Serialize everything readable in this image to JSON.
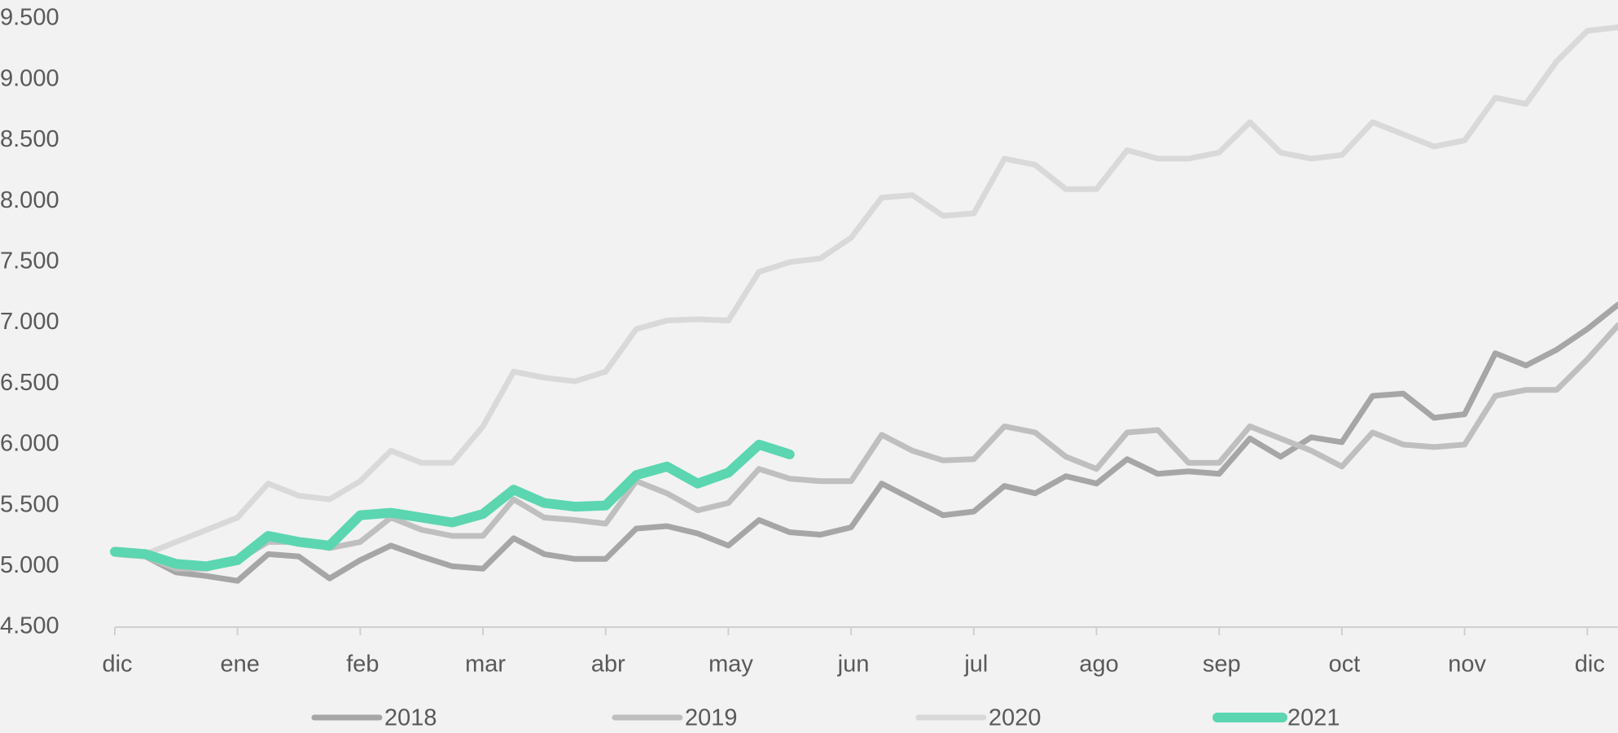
{
  "chart_data": {
    "type": "line",
    "x": [
      0,
      0.25,
      0.5,
      0.75,
      1,
      1.25,
      1.5,
      1.75,
      2,
      2.25,
      2.5,
      2.75,
      3,
      3.25,
      3.5,
      3.75,
      4,
      4.25,
      4.5,
      4.75,
      5,
      5.25,
      5.5,
      5.75,
      6,
      6.25,
      6.5,
      6.75,
      7,
      7.25,
      7.5,
      7.75,
      8,
      8.25,
      8.5,
      8.75,
      9,
      9.25,
      9.5,
      9.75,
      10,
      10.25,
      10.5,
      10.75,
      11,
      11.25,
      11.5,
      11.75,
      12,
      12.25
    ],
    "series": [
      {
        "name": "2018",
        "color": "#a6a6a6",
        "width": 7,
        "values": [
          5120,
          5080,
          4950,
          4920,
          4880,
          5100,
          5080,
          4900,
          5050,
          5170,
          5080,
          5000,
          4980,
          5230,
          5100,
          5060,
          5060,
          5310,
          5330,
          5270,
          5170,
          5380,
          5280,
          5260,
          5320,
          5680,
          5550,
          5420,
          5450,
          5660,
          5600,
          5740,
          5680,
          5880,
          5760,
          5780,
          5760,
          6050,
          5900,
          6060,
          6020,
          6400,
          6420,
          6220,
          6250,
          6750,
          6650,
          6780,
          6950,
          7150
        ]
      },
      {
        "name": "2019",
        "color": "#bfbfbf",
        "width": 7,
        "values": [
          5100,
          5080,
          4980,
          4980,
          5050,
          5200,
          5200,
          5150,
          5200,
          5400,
          5300,
          5250,
          5250,
          5550,
          5400,
          5380,
          5350,
          5700,
          5600,
          5460,
          5520,
          5800,
          5720,
          5700,
          5700,
          6080,
          5950,
          5870,
          5880,
          6150,
          6100,
          5900,
          5800,
          6100,
          6120,
          5850,
          5850,
          6150,
          6050,
          5950,
          5820,
          6100,
          6000,
          5980,
          6000,
          6400,
          6450,
          6450,
          6700,
          6980
        ]
      },
      {
        "name": "2020",
        "color": "#d9d9d9",
        "width": 7,
        "values": [
          5100,
          5100,
          5200,
          5300,
          5400,
          5680,
          5580,
          5550,
          5700,
          5950,
          5850,
          5850,
          6150,
          6600,
          6550,
          6520,
          6600,
          6950,
          7020,
          7030,
          7020,
          7420,
          7500,
          7530,
          7700,
          8030,
          8050,
          7880,
          7900,
          8350,
          8300,
          8100,
          8100,
          8420,
          8350,
          8350,
          8400,
          8650,
          8400,
          8350,
          8380,
          8650,
          8550,
          8450,
          8500,
          8850,
          8800,
          9150,
          9400,
          9430
        ]
      },
      {
        "name": "2021",
        "color": "#5cd6b0",
        "width": 12,
        "values": [
          5120,
          5100,
          5020,
          5000,
          5050,
          5250,
          5200,
          5170,
          5420,
          5440,
          5400,
          5360,
          5430,
          5630,
          5520,
          5490,
          5500,
          5750,
          5820,
          5680,
          5770,
          6000,
          5920,
          null,
          null,
          null,
          null,
          null,
          null,
          null,
          null,
          null,
          null,
          null,
          null,
          null,
          null,
          null,
          null,
          null,
          null,
          null,
          null,
          null,
          null,
          null,
          null,
          null,
          null,
          null
        ]
      }
    ],
    "xlim": [
      0,
      12.25
    ],
    "xticks": [
      {
        "value": 0,
        "label": "dic"
      },
      {
        "value": 1,
        "label": "ene"
      },
      {
        "value": 2,
        "label": "feb"
      },
      {
        "value": 3,
        "label": "mar"
      },
      {
        "value": 4,
        "label": "abr"
      },
      {
        "value": 5,
        "label": "may"
      },
      {
        "value": 6,
        "label": "jun"
      },
      {
        "value": 7,
        "label": "jul"
      },
      {
        "value": 8,
        "label": "ago"
      },
      {
        "value": 9,
        "label": "sep"
      },
      {
        "value": 10,
        "label": "oct"
      },
      {
        "value": 11,
        "label": "nov"
      },
      {
        "value": 12,
        "label": "dic"
      }
    ],
    "ylim": [
      4500,
      9500
    ],
    "yticks": [
      {
        "value": 4500,
        "label": "4.500"
      },
      {
        "value": 5000,
        "label": "5.000"
      },
      {
        "value": 5500,
        "label": "5.500"
      },
      {
        "value": 6000,
        "label": "6.000"
      },
      {
        "value": 6500,
        "label": "6.500"
      },
      {
        "value": 7000,
        "label": "7.000"
      },
      {
        "value": 7500,
        "label": "7.500"
      },
      {
        "value": 8000,
        "label": "8.000"
      },
      {
        "value": 8500,
        "label": "8.500"
      },
      {
        "value": 9000,
        "label": "9.000"
      },
      {
        "value": 9500,
        "label": "9.500"
      }
    ],
    "grid": false,
    "legend": "bottom"
  }
}
